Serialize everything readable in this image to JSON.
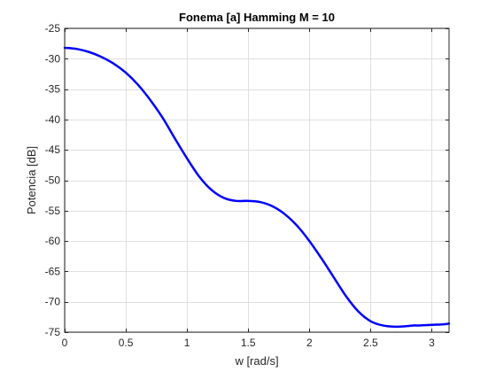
{
  "chart_data": {
    "type": "line",
    "title": "Fonema [a] Hamming M = 10",
    "xlabel": "w [rad/s]",
    "ylabel": "Potencia [dB]",
    "xlim": [
      0,
      3.1416
    ],
    "ylim": [
      -75,
      -25
    ],
    "xticks": [
      0,
      0.5,
      1,
      1.5,
      2,
      2.5,
      3
    ],
    "xtick_labels": [
      "0",
      "0.5",
      "1",
      "1.5",
      "2",
      "2.5",
      "3"
    ],
    "yticks": [
      -75,
      -70,
      -65,
      -60,
      -55,
      -50,
      -45,
      -40,
      -35,
      -30,
      -25
    ],
    "ytick_labels": [
      "-75",
      "-70",
      "-65",
      "-60",
      "-55",
      "-50",
      "-45",
      "-40",
      "-35",
      "-30",
      "-25"
    ],
    "grid": true,
    "series": [
      {
        "color": "#0000ff",
        "x": [
          0,
          0.1,
          0.2,
          0.3,
          0.4,
          0.5,
          0.6,
          0.7,
          0.8,
          0.9,
          1.0,
          1.1,
          1.2,
          1.3,
          1.4,
          1.5,
          1.6,
          1.7,
          1.8,
          1.9,
          2.0,
          2.1,
          2.2,
          2.3,
          2.4,
          2.5,
          2.6,
          2.7,
          2.8,
          2.85,
          2.9,
          3.0,
          3.1,
          3.1416
        ],
        "y": [
          -28.2,
          -28.4,
          -28.9,
          -29.7,
          -30.8,
          -32.3,
          -34.3,
          -36.8,
          -39.7,
          -43.1,
          -46.4,
          -49.4,
          -51.6,
          -52.9,
          -53.4,
          -53.4,
          -53.6,
          -54.3,
          -55.6,
          -57.5,
          -60.0,
          -62.9,
          -66.0,
          -69.1,
          -71.6,
          -73.2,
          -73.9,
          -74.1,
          -74.0,
          -73.9,
          -73.9,
          -73.8,
          -73.7,
          -73.6
        ]
      }
    ]
  },
  "colors": {
    "line": "#0000ff",
    "grid": "#dfdfdf",
    "axes": "#262626",
    "background": "#ffffff"
  }
}
